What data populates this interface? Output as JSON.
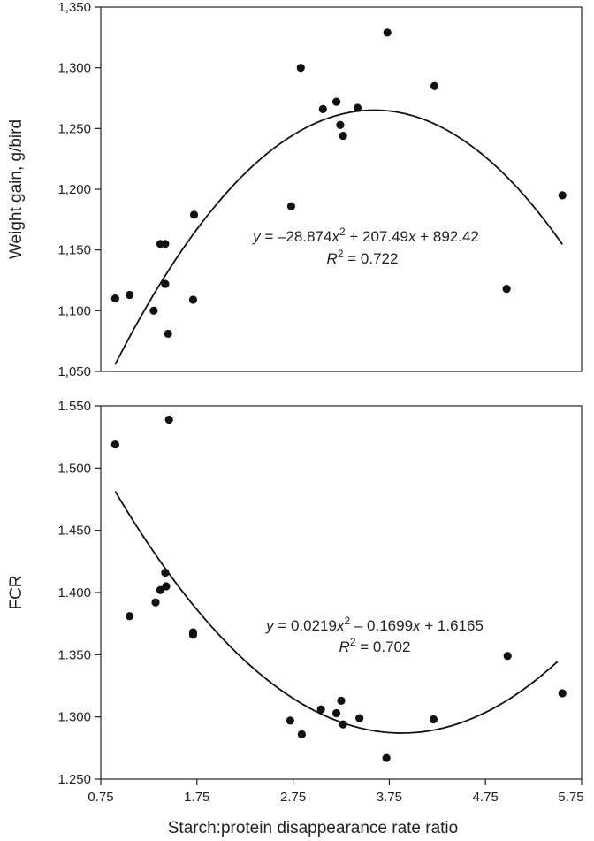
{
  "chart_data": [
    {
      "type": "scatter",
      "title": "",
      "xlabel": "",
      "ylabel": "Weight gain, g/bird",
      "xlim": [
        0.75,
        5.75
      ],
      "ylim": [
        1050,
        1350
      ],
      "x_ticks": [
        "0.75",
        "1.75",
        "2.75",
        "3.75",
        "4.75",
        "5.75"
      ],
      "y_ticks": [
        "1,050",
        "1,100",
        "1,150",
        "1,200",
        "1,250",
        "1,300",
        "1,350"
      ],
      "x_tick_values": [
        0.75,
        1.75,
        2.75,
        3.75,
        4.75,
        5.75
      ],
      "y_tick_values": [
        1050,
        1100,
        1150,
        1200,
        1250,
        1300,
        1350
      ],
      "grid": false,
      "series": [
        {
          "points": [
            [
              0.9,
              1110
            ],
            [
              1.05,
              1113
            ],
            [
              1.3,
              1100
            ],
            [
              1.37,
              1155
            ],
            [
              1.42,
              1155
            ],
            [
              1.42,
              1122
            ],
            [
              1.45,
              1081
            ],
            [
              1.71,
              1109
            ],
            [
              1.72,
              1179
            ],
            [
              2.73,
              1186
            ],
            [
              2.83,
              1300
            ],
            [
              3.06,
              1266
            ],
            [
              3.2,
              1272
            ],
            [
              3.24,
              1253
            ],
            [
              3.27,
              1244
            ],
            [
              3.42,
              1267
            ],
            [
              3.73,
              1329
            ],
            [
              4.22,
              1285
            ],
            [
              4.97,
              1118
            ],
            [
              5.55,
              1195
            ]
          ]
        }
      ],
      "fit": {
        "a": -28.874,
        "b": 207.49,
        "c": 892.42,
        "x_range": [
          0.9,
          5.55
        ],
        "equation_prefix": "y = –28.874",
        "equation_mid": " + 207.49",
        "equation_suffix": " + 892.42",
        "var": "x",
        "sup": "2",
        "r2_label": "R",
        "r2_value": " = 0.722"
      }
    },
    {
      "type": "scatter",
      "title": "",
      "xlabel": "Starch:protein disappearance rate ratio",
      "ylabel": "FCR",
      "xlim": [
        0.75,
        5.75
      ],
      "ylim": [
        1.25,
        1.55
      ],
      "x_ticks": [
        "0.75",
        "1.75",
        "2.75",
        "3.75",
        "4.75",
        "5.75"
      ],
      "y_ticks": [
        "1.250",
        "1.300",
        "1.350",
        "1.400",
        "1.450",
        "1.500",
        "1.550"
      ],
      "x_tick_values": [
        0.75,
        1.75,
        2.75,
        3.75,
        4.75,
        5.75
      ],
      "y_tick_values": [
        1.25,
        1.3,
        1.35,
        1.4,
        1.45,
        1.5,
        1.55
      ],
      "grid": false,
      "series": [
        {
          "points": [
            [
              0.9,
              1.519
            ],
            [
              1.05,
              1.381
            ],
            [
              1.32,
              1.392
            ],
            [
              1.37,
              1.402
            ],
            [
              1.43,
              1.405
            ],
            [
              1.42,
              1.416
            ],
            [
              1.46,
              1.539
            ],
            [
              1.71,
              1.366
            ],
            [
              1.71,
              1.368
            ],
            [
              2.72,
              1.297
            ],
            [
              2.84,
              1.286
            ],
            [
              3.04,
              1.306
            ],
            [
              3.2,
              1.303
            ],
            [
              3.25,
              1.313
            ],
            [
              3.27,
              1.294
            ],
            [
              3.44,
              1.299
            ],
            [
              3.72,
              1.267
            ],
            [
              4.21,
              1.298
            ],
            [
              4.98,
              1.349
            ],
            [
              5.55,
              1.319
            ]
          ]
        }
      ],
      "fit": {
        "a": 0.0219,
        "b": -0.1699,
        "c": 1.6165,
        "x_range": [
          0.9,
          5.5
        ],
        "equation_prefix": "y = 0.0219",
        "equation_mid": " – 0.1699",
        "equation_suffix": " + 1.6165",
        "var": "x",
        "sup": "2",
        "r2_label": "R",
        "r2_value": " = 0.702"
      }
    }
  ]
}
